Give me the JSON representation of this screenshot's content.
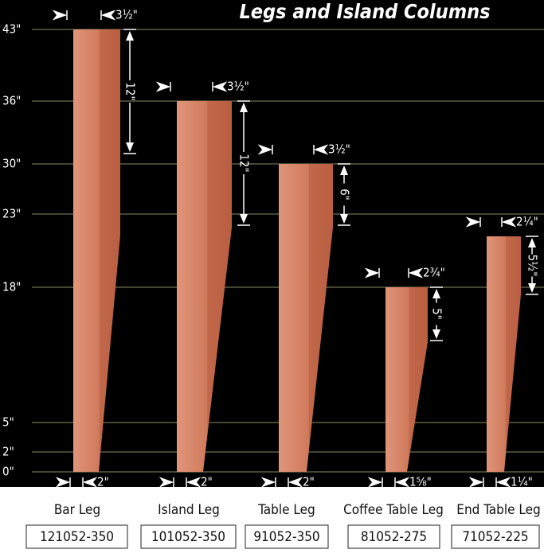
{
  "title": "Legs and Island Columns",
  "height_labels": [
    "43\"",
    "36\"",
    "30\"",
    "23\"",
    "18\"",
    "5\"",
    "2\"",
    "0\""
  ],
  "legs": [
    {
      "name": "Bar Leg",
      "code": "121052-350",
      "top_width": "3½\"",
      "taper_length": "12\"",
      "bottom_width": "2\""
    },
    {
      "name": "Island Leg",
      "code": "101052-350",
      "top_width": "3½\"",
      "taper_length": "12\"",
      "bottom_width": "2\""
    },
    {
      "name": "Table Leg",
      "code": "91052-350",
      "top_width": "3½\"",
      "taper_length": "6\"",
      "bottom_width": "2\""
    },
    {
      "name": "Coffee Table Leg",
      "code": "81052-275",
      "top_width": "2¾\"",
      "taper_length": "5\"",
      "bottom_width": "1⅝\""
    },
    {
      "name": "End Table Leg",
      "code": "71052-225",
      "top_width": "2¼\"",
      "taper_length": "5½\"",
      "bottom_width": "1¼\""
    }
  ]
}
